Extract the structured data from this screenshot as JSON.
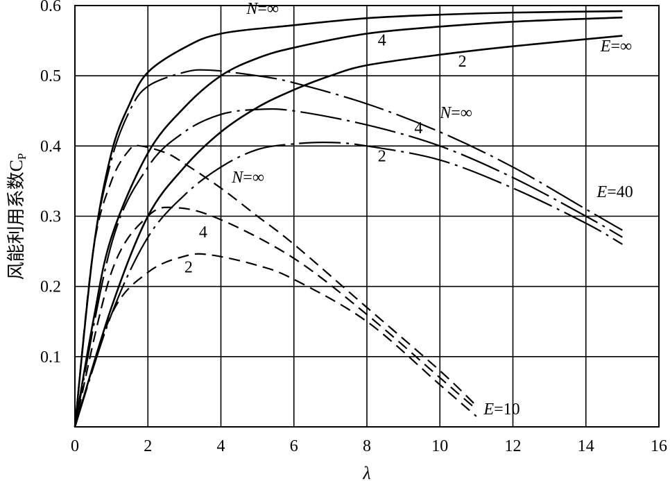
{
  "chart_data": {
    "type": "line",
    "title": "",
    "xlabel": "λ",
    "ylabel": "风能利用系数C",
    "ylabel_sub": "P",
    "xlim": [
      0,
      16
    ],
    "ylim": [
      0,
      0.6
    ],
    "grid": true,
    "x_ticks": [
      "0",
      "2",
      "4",
      "6",
      "8",
      "10",
      "12",
      "14",
      "16"
    ],
    "x_tick_values": [
      0,
      2,
      4,
      6,
      8,
      10,
      12,
      14,
      16
    ],
    "y_ticks": [
      "0.1",
      "0.2",
      "0.3",
      "0.4",
      "0.5",
      "0.6"
    ],
    "y_tick_values": [
      0.1,
      0.2,
      0.3,
      0.4,
      0.5,
      0.6
    ],
    "series": [
      {
        "name": "E=∞, N=∞",
        "group": "E=∞",
        "style": "solid",
        "points": [
          [
            0,
            0
          ],
          [
            0.5,
            0.25
          ],
          [
            1,
            0.39
          ],
          [
            1.5,
            0.46
          ],
          [
            2,
            0.505
          ],
          [
            3,
            0.54
          ],
          [
            4,
            0.56
          ],
          [
            6,
            0.572
          ],
          [
            8,
            0.582
          ],
          [
            10,
            0.587
          ],
          [
            12,
            0.59
          ],
          [
            15,
            0.592
          ]
        ]
      },
      {
        "name": "E=∞, N=4",
        "group": "E=∞",
        "style": "solid",
        "points": [
          [
            0,
            0
          ],
          [
            0.5,
            0.15
          ],
          [
            1,
            0.27
          ],
          [
            2,
            0.39
          ],
          [
            3,
            0.455
          ],
          [
            4,
            0.5
          ],
          [
            5,
            0.525
          ],
          [
            6,
            0.54
          ],
          [
            8,
            0.56
          ],
          [
            10,
            0.57
          ],
          [
            12,
            0.577
          ],
          [
            15,
            0.583
          ]
        ]
      },
      {
        "name": "E=∞, N=2",
        "group": "E=∞",
        "style": "solid",
        "points": [
          [
            0,
            0
          ],
          [
            1,
            0.17
          ],
          [
            2,
            0.3
          ],
          [
            3,
            0.37
          ],
          [
            4,
            0.42
          ],
          [
            5,
            0.455
          ],
          [
            6,
            0.48
          ],
          [
            7,
            0.5
          ],
          [
            8,
            0.515
          ],
          [
            10,
            0.53
          ],
          [
            12,
            0.542
          ],
          [
            15,
            0.557
          ]
        ]
      },
      {
        "name": "E=40, N=∞",
        "group": "E=40",
        "style": "dashdot",
        "points": [
          [
            0,
            0
          ],
          [
            0.5,
            0.25
          ],
          [
            1,
            0.38
          ],
          [
            1.5,
            0.45
          ],
          [
            2,
            0.485
          ],
          [
            3,
            0.505
          ],
          [
            3.7,
            0.508
          ],
          [
            5,
            0.5
          ],
          [
            6,
            0.49
          ],
          [
            8,
            0.46
          ],
          [
            10,
            0.42
          ],
          [
            12,
            0.37
          ],
          [
            14,
            0.31
          ],
          [
            15,
            0.28
          ]
        ]
      },
      {
        "name": "E=40, N=4",
        "group": "E=40",
        "style": "dashdot",
        "points": [
          [
            0,
            0
          ],
          [
            1,
            0.26
          ],
          [
            2,
            0.37
          ],
          [
            3,
            0.42
          ],
          [
            4,
            0.445
          ],
          [
            5,
            0.452
          ],
          [
            6,
            0.45
          ],
          [
            8,
            0.43
          ],
          [
            10,
            0.4
          ],
          [
            12,
            0.355
          ],
          [
            14,
            0.3
          ],
          [
            15,
            0.27
          ]
        ]
      },
      {
        "name": "E=40, N=2",
        "group": "E=40",
        "style": "dashdot",
        "points": [
          [
            0,
            0
          ],
          [
            1,
            0.16
          ],
          [
            2,
            0.27
          ],
          [
            3,
            0.33
          ],
          [
            4,
            0.37
          ],
          [
            5,
            0.395
          ],
          [
            6,
            0.403
          ],
          [
            7,
            0.405
          ],
          [
            8,
            0.4
          ],
          [
            10,
            0.38
          ],
          [
            12,
            0.34
          ],
          [
            14,
            0.29
          ],
          [
            15,
            0.26
          ]
        ]
      },
      {
        "name": "E=10, N=∞",
        "group": "E=10",
        "style": "dashed",
        "points": [
          [
            0,
            0
          ],
          [
            0.5,
            0.25
          ],
          [
            1,
            0.35
          ],
          [
            1.5,
            0.395
          ],
          [
            1.8,
            0.4
          ],
          [
            2.5,
            0.39
          ],
          [
            3,
            0.375
          ],
          [
            4,
            0.34
          ],
          [
            5,
            0.3
          ],
          [
            6,
            0.26
          ],
          [
            8,
            0.17
          ],
          [
            10,
            0.08
          ],
          [
            11,
            0.03
          ]
        ]
      },
      {
        "name": "E=10, N=4",
        "group": "E=10",
        "style": "dashed",
        "points": [
          [
            0,
            0
          ],
          [
            1,
            0.22
          ],
          [
            2,
            0.3
          ],
          [
            2.8,
            0.312
          ],
          [
            4,
            0.295
          ],
          [
            6,
            0.24
          ],
          [
            8,
            0.16
          ],
          [
            10,
            0.07
          ],
          [
            11,
            0.025
          ]
        ]
      },
      {
        "name": "E=10, N=2",
        "group": "E=10",
        "style": "dashed",
        "points": [
          [
            0,
            0
          ],
          [
            1,
            0.16
          ],
          [
            2,
            0.22
          ],
          [
            3,
            0.243
          ],
          [
            3.7,
            0.245
          ],
          [
            5,
            0.23
          ],
          [
            6,
            0.21
          ],
          [
            8,
            0.15
          ],
          [
            10,
            0.06
          ],
          [
            11,
            0.015
          ]
        ]
      }
    ],
    "annotations": [
      {
        "italic": "N",
        "text": "=∞",
        "x": 4.7,
        "y": 0.588
      },
      {
        "italic": "",
        "text": "4",
        "x": 8.3,
        "y": 0.543
      },
      {
        "italic": "",
        "text": "2",
        "x": 10.5,
        "y": 0.513
      },
      {
        "italic": "E",
        "text": "=∞",
        "x": 14.4,
        "y": 0.535
      },
      {
        "italic": "N",
        "text": "=∞",
        "x": 10.0,
        "y": 0.44
      },
      {
        "italic": "",
        "text": "4",
        "x": 9.3,
        "y": 0.418
      },
      {
        "italic": "",
        "text": "2",
        "x": 8.3,
        "y": 0.378
      },
      {
        "italic": "E",
        "text": "=40",
        "x": 14.3,
        "y": 0.327
      },
      {
        "italic": "N",
        "text": "=∞",
        "x": 4.3,
        "y": 0.348
      },
      {
        "italic": "",
        "text": "4",
        "x": 3.4,
        "y": 0.27
      },
      {
        "italic": "",
        "text": "2",
        "x": 3.0,
        "y": 0.22
      },
      {
        "italic": "E",
        "text": "=10",
        "x": 11.2,
        "y": 0.018
      }
    ]
  }
}
